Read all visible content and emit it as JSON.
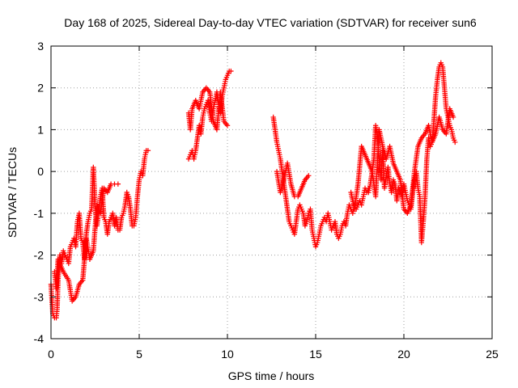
{
  "chart_data": {
    "type": "scatter",
    "title": "Day 168 of 2025, Sidereal Day-to-day VTEC variation (SDTVAR) for receiver sun6",
    "xlabel": "GPS time / hours",
    "ylabel": "SDTVAR / TECUs",
    "xlim": [
      0,
      25
    ],
    "ylim": [
      -4,
      3
    ],
    "xticks": [
      0,
      5,
      10,
      15,
      20,
      25
    ],
    "yticks": [
      -4,
      -3,
      -2,
      -1,
      0,
      1,
      2,
      3
    ],
    "grid": true,
    "marker": "+",
    "color": "#ff0000",
    "segments": [
      {
        "x": [
          0.0,
          0.1,
          0.2,
          0.3,
          0.35,
          0.4,
          0.5,
          0.6,
          0.7,
          0.8,
          0.9,
          1.0,
          1.1,
          1.2,
          1.3,
          1.4,
          1.5,
          1.6,
          1.7,
          1.8,
          1.9,
          2.0,
          2.1,
          2.2,
          2.3,
          2.4,
          2.5,
          2.6,
          2.7,
          2.8,
          2.9,
          3.0,
          3.1,
          3.2,
          3.3,
          3.4,
          3.5,
          3.6,
          3.7,
          3.8,
          3.9,
          4.0,
          4.1,
          4.2,
          4.3,
          4.4,
          4.5,
          4.6,
          4.7,
          4.8,
          4.9,
          5.0,
          5.1,
          5.2,
          5.3,
          5.4,
          5.5
        ],
        "y": [
          -2.7,
          -3.4,
          -3.5,
          -3.5,
          -3.3,
          -2.6,
          -2.0,
          -2.2,
          -1.9,
          -2.0,
          -2.1,
          -2.2,
          -1.8,
          -1.7,
          -1.6,
          -1.8,
          -1.2,
          -1.0,
          -1.6,
          -1.7,
          -2.1,
          -1.5,
          -1.2,
          -1.0,
          -0.9,
          0.1,
          -0.8,
          -1.3,
          -1.0,
          -0.6,
          -0.4,
          -1.1,
          -1.2,
          -1.5,
          -1.2,
          -1.1,
          -1.0,
          -1.3,
          -1.1,
          -1.4,
          -1.4,
          -1.1,
          -1.0,
          -0.8,
          -0.5,
          -0.6,
          -0.9,
          -1.3,
          -1.3,
          -1.1,
          -0.6,
          -0.2,
          0.0,
          -0.1,
          0.3,
          0.5,
          0.5
        ]
      },
      {
        "x": [
          0.2,
          0.3,
          0.4,
          0.5,
          0.7,
          1.0,
          1.2,
          1.4,
          1.6,
          1.8,
          2.0,
          2.2,
          2.4,
          2.6,
          2.8,
          3.0,
          3.2,
          3.4,
          3.6,
          3.8
        ],
        "y": [
          -2.4,
          -2.8,
          -2.1,
          -2.2,
          -2.4,
          -2.6,
          -3.1,
          -3.0,
          -2.7,
          -2.6,
          -1.6,
          -2.1,
          -1.9,
          -0.8,
          -1.0,
          -0.4,
          -0.5,
          -0.3,
          -0.3,
          -0.3
        ]
      },
      {
        "x": [
          7.8,
          7.9,
          8.0,
          8.1,
          8.2,
          8.3,
          8.4,
          8.5,
          8.6,
          8.7,
          8.8,
          8.9,
          9.0,
          9.1,
          9.2,
          9.3,
          9.4,
          9.5,
          9.6,
          9.7,
          9.8,
          9.9,
          10.0,
          10.1,
          10.2
        ],
        "y": [
          0.3,
          0.4,
          0.5,
          0.3,
          0.5,
          0.8,
          1.1,
          0.9,
          1.3,
          1.5,
          1.6,
          1.7,
          1.4,
          1.2,
          1.5,
          1.7,
          1.9,
          1.6,
          1.4,
          1.8,
          2.0,
          2.2,
          2.3,
          2.4,
          2.4
        ]
      },
      {
        "x": [
          7.8,
          7.9,
          8.0,
          8.2,
          8.4,
          8.6,
          8.8,
          9.0,
          9.2,
          9.4,
          9.6,
          9.8,
          10.0
        ],
        "y": [
          1.4,
          1.0,
          1.5,
          1.7,
          1.5,
          1.9,
          2.0,
          1.9,
          1.2,
          1.0,
          1.9,
          1.2,
          1.1
        ]
      },
      {
        "x": [
          12.6,
          12.7,
          12.8,
          12.9,
          13.0,
          13.1,
          13.2,
          13.3,
          13.4,
          13.5,
          13.6,
          13.7,
          13.8,
          13.9,
          14.0,
          14.1,
          14.2,
          14.3,
          14.4,
          14.5,
          14.6,
          14.7,
          14.8,
          14.9,
          15.0,
          15.1,
          15.2,
          15.3,
          15.4,
          15.5,
          15.6,
          15.7,
          15.8,
          15.9,
          16.0,
          16.1,
          16.2,
          16.3,
          16.4,
          16.5,
          16.6,
          16.7,
          16.8,
          16.9,
          17.0,
          17.1,
          17.2,
          17.3,
          17.4,
          17.5,
          17.6,
          17.7,
          17.8,
          17.9,
          18.0
        ],
        "y": [
          1.3,
          1.0,
          0.7,
          0.5,
          0.3,
          0.0,
          -0.3,
          -0.6,
          -0.9,
          -1.2,
          -1.3,
          -1.4,
          -1.5,
          -1.2,
          -0.9,
          -0.8,
          -0.9,
          -1.0,
          -1.3,
          -1.2,
          -1.0,
          -0.9,
          -1.4,
          -1.6,
          -1.8,
          -1.7,
          -1.5,
          -1.3,
          -1.2,
          -1.1,
          -1.2,
          -1.0,
          -1.2,
          -1.4,
          -1.3,
          -1.2,
          -1.5,
          -1.6,
          -1.5,
          -1.3,
          -1.2,
          -1.3,
          -1.0,
          -0.8,
          -0.9,
          -1.0,
          -0.8,
          -0.9,
          -0.8,
          -0.7,
          -0.8,
          -0.6,
          -0.4,
          -0.5,
          -0.4
        ]
      },
      {
        "x": [
          12.8,
          13.0,
          13.2,
          13.4,
          13.6,
          13.8,
          14.0,
          14.2,
          14.4,
          14.6
        ],
        "y": [
          0.0,
          -0.5,
          -0.2,
          0.2,
          -0.3,
          -0.6,
          -0.6,
          -0.4,
          -0.2,
          -0.1
        ]
      },
      {
        "x": [
          18.0,
          18.1,
          18.2,
          18.3,
          18.4,
          18.5,
          18.6,
          18.7,
          18.8,
          18.9,
          19.0,
          19.1,
          19.2,
          19.3,
          19.4,
          19.5,
          19.6,
          19.7,
          19.8,
          19.9,
          20.0,
          20.1,
          20.2,
          20.3,
          20.4,
          20.5,
          20.6,
          20.7,
          20.8,
          20.9,
          21.0,
          21.1,
          21.2,
          21.3,
          21.4,
          21.5,
          21.6,
          21.7,
          21.8,
          21.9,
          22.0,
          22.1,
          22.2,
          22.3,
          22.4,
          22.5,
          22.6,
          22.7,
          22.8,
          22.9
        ],
        "y": [
          -0.5,
          -0.3,
          0.0,
          0.3,
          1.1,
          0.8,
          0.3,
          -0.2,
          0.5,
          -0.4,
          -0.1,
          0.1,
          -0.3,
          -0.5,
          -0.2,
          -0.3,
          -0.7,
          -0.4,
          -0.5,
          -0.6,
          -0.3,
          -0.5,
          -0.7,
          -0.8,
          -0.9,
          -0.5,
          -0.2,
          0.0,
          -0.4,
          -0.6,
          -1.7,
          -1.2,
          -0.6,
          0.3,
          0.8,
          0.6,
          0.7,
          1.2,
          1.8,
          2.2,
          2.5,
          2.6,
          2.5,
          2.0,
          1.5,
          1.3,
          1.1,
          1.0,
          0.8,
          0.7
        ]
      },
      {
        "x": [
          17.0,
          17.2,
          17.4,
          17.6,
          17.8,
          18.0,
          18.2,
          18.4,
          18.6,
          18.8,
          19.0,
          19.2,
          19.4,
          19.6,
          19.8,
          20.0,
          20.2,
          20.4,
          20.6,
          20.8,
          21.0,
          21.2,
          21.4,
          21.6,
          21.8,
          22.0,
          22.2,
          22.4,
          22.6,
          22.8
        ],
        "y": [
          -0.5,
          -0.9,
          -0.3,
          0.6,
          0.4,
          0.2,
          0.0,
          -0.6,
          1.0,
          0.6,
          0.3,
          0.6,
          0.2,
          0.0,
          -0.2,
          -0.9,
          -1.0,
          -0.8,
          0.0,
          0.6,
          0.8,
          0.9,
          1.1,
          0.7,
          0.9,
          1.3,
          1.0,
          0.9,
          1.5,
          1.3
        ]
      }
    ]
  }
}
